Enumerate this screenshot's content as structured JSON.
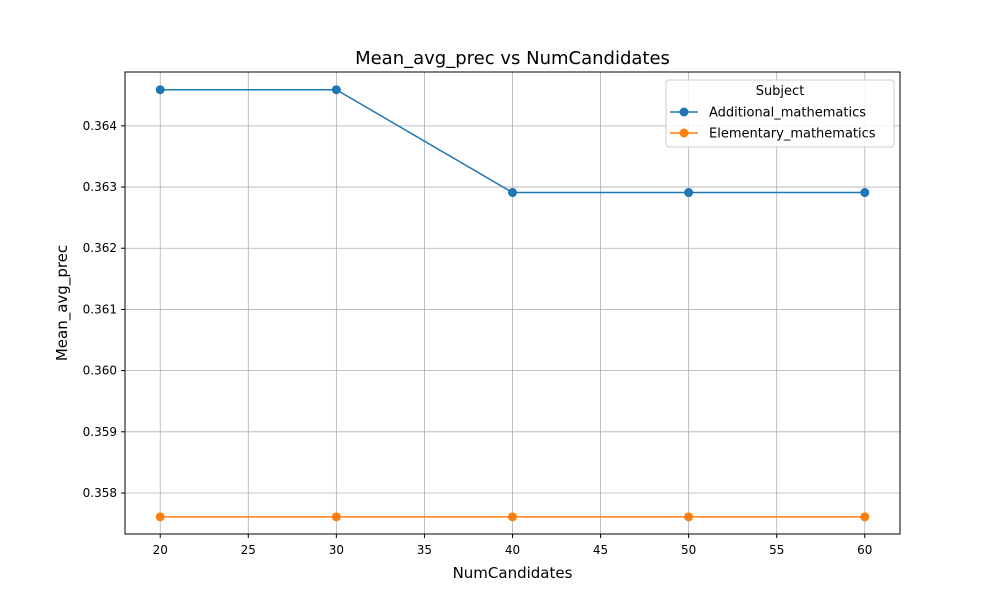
{
  "chart_data": {
    "type": "line",
    "title": "Mean_avg_prec vs NumCandidates",
    "xlabel": "NumCandidates",
    "ylabel": "Mean_avg_prec",
    "x": [
      20,
      30,
      40,
      50,
      60
    ],
    "xlim": [
      18,
      62
    ],
    "ylim": [
      0.35733,
      0.36488
    ],
    "xticks": [
      "20",
      "25",
      "30",
      "35",
      "40",
      "45",
      "50",
      "55",
      "60"
    ],
    "yticks": [
      "0.358",
      "0.359",
      "0.360",
      "0.361",
      "0.362",
      "0.363",
      "0.364"
    ],
    "grid": true,
    "legend": {
      "title": "Subject",
      "placement": "top-right"
    },
    "series": [
      {
        "name": "Additional_mathematics",
        "color": "#1f77b4",
        "values": [
          0.36459,
          0.36459,
          0.36291,
          0.36291,
          0.36291
        ]
      },
      {
        "name": "Elementary_mathematics",
        "color": "#ff7f0e",
        "values": [
          0.35761,
          0.35761,
          0.35761,
          0.35761,
          0.35761
        ]
      }
    ]
  }
}
